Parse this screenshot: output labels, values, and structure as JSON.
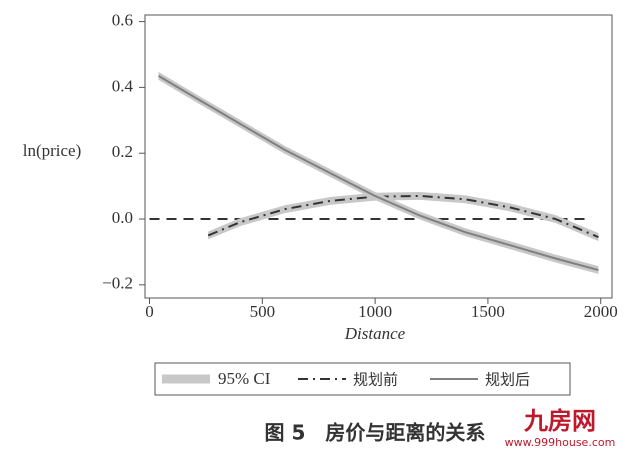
{
  "chart_data": {
    "type": "line",
    "x_label": "Distance",
    "y_label": "ln(price)",
    "caption": "图 5　房价与距离的关系",
    "watermark": "九房网",
    "watermark_url": "www.999house.com",
    "xlim": [
      -20,
      2050
    ],
    "ylim": [
      -0.24,
      0.62
    ],
    "xticks": [
      0,
      500,
      1000,
      1500,
      2000
    ],
    "yticks": [
      {
        "value": -0.2,
        "label": "−0.2"
      },
      {
        "value": 0,
        "label": "0.0"
      },
      0.2,
      0.4,
      0.6
    ],
    "hline": 0,
    "hline_x": [
      0,
      1950
    ],
    "ci": {
      "name": "95% CI",
      "color": "#c8c8c8",
      "halfwidth": 0.012
    },
    "series": [
      {
        "name": "规划前",
        "color": "#333333",
        "dash": "dashdot",
        "x": [
          260,
          400,
          600,
          800,
          1000,
          1200,
          1400,
          1600,
          1800,
          1990
        ],
        "values": [
          -0.05,
          -0.01,
          0.03,
          0.055,
          0.068,
          0.07,
          0.06,
          0.035,
          0.0,
          -0.055
        ]
      },
      {
        "name": "规划后",
        "color": "#808080",
        "dash": "solid",
        "x": [
          40,
          200,
          400,
          600,
          800,
          1000,
          1200,
          1400,
          1600,
          1800,
          1990
        ],
        "values": [
          0.435,
          0.37,
          0.29,
          0.21,
          0.14,
          0.07,
          0.01,
          -0.04,
          -0.08,
          -0.12,
          -0.155
        ]
      }
    ]
  }
}
